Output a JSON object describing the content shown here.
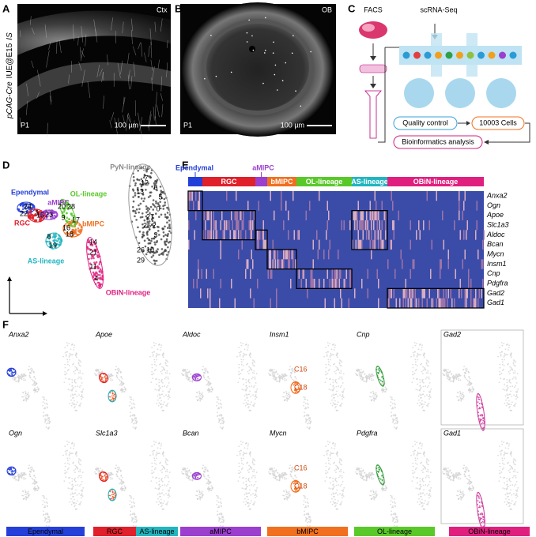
{
  "panel_a": {
    "letter": "A",
    "region": "Ctx",
    "construct": "pCAG-Cre",
    "method": "IUE@E15",
    "tag": "IS",
    "age": "P1",
    "scale_bar": "100 µm"
  },
  "panel_b": {
    "letter": "B",
    "region": "OB",
    "age": "P1",
    "scale_bar": "100 µm"
  },
  "panel_c": {
    "letter": "C",
    "sort": "FACS",
    "sequencing": "scRNA-Seq",
    "steps": [
      "Quality control",
      "10003 Cells",
      "Bioinformatics analysis"
    ]
  },
  "panel_d": {
    "letter": "D",
    "lineages": [
      "PyN-lineage",
      "OL-lineage",
      "Ependymal",
      "aMIPC",
      "RGC",
      "bMIPC",
      "AS-lineage",
      "OBiN-lineage"
    ],
    "clusters": [
      "13",
      "6",
      "5",
      "0",
      "27",
      "25",
      "2",
      "3",
      "26",
      "10",
      "29",
      "7",
      "20",
      "28",
      "9",
      "24",
      "1",
      "22",
      "23",
      "15",
      "17",
      "16",
      "18",
      "8",
      "19",
      "14",
      "21",
      "11",
      "4",
      "12"
    ]
  },
  "panel_e": {
    "letter": "E",
    "groups": [
      "Ependymal",
      "aMIPC",
      "RGC",
      "bMIPC",
      "OL-lineage",
      "AS-lineage",
      "OBiN-lineage"
    ],
    "genes": [
      "Anxa2",
      "Ogn",
      "Apoe",
      "Slc1a3",
      "Aldoc",
      "Bcan",
      "Mycn",
      "Insm1",
      "Cnp",
      "Pdgfra",
      "Gad2",
      "Gad1"
    ]
  },
  "panel_f": {
    "letter": "F",
    "genes_top": [
      "Anxa2",
      "Apoe",
      "Aldoc",
      "Insm1",
      "Cnp",
      "Gad2"
    ],
    "genes_bottom": [
      "Ogn",
      "Slc1a3",
      "Bcan",
      "Mycn",
      "Pdgfra",
      "Gad1"
    ],
    "annotations": [
      "C16",
      "C18",
      "C16",
      "C18"
    ],
    "legend": [
      "Ependymal",
      "RGC",
      "AS-lineage",
      "aMIPC",
      "bMIPC",
      "OL-lineage",
      "OBiN-lineage"
    ]
  }
}
